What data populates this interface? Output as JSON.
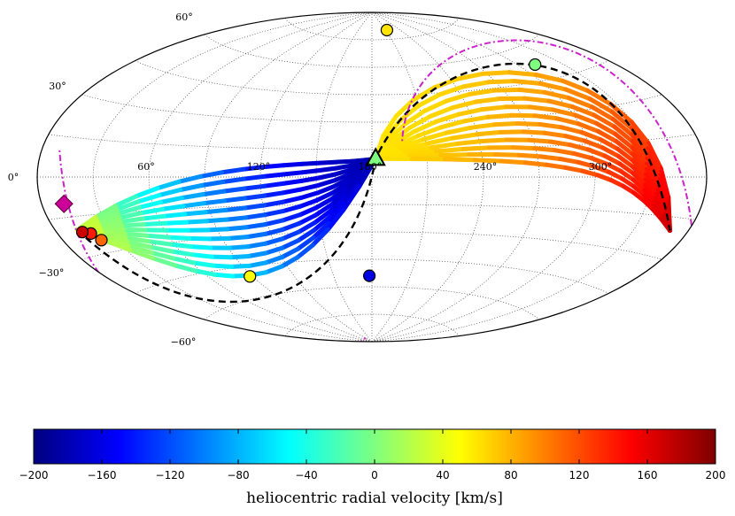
{
  "chart_data": {
    "type": "scatter",
    "projection": "Aitoff sky map",
    "title": "",
    "lon_ticks": [
      "60°",
      "120°",
      "180°",
      "240°",
      "300°"
    ],
    "lat_ticks": [
      "60°",
      "30°",
      "0°",
      "−30°",
      "−60°"
    ],
    "colorbar": {
      "label": "heliocentric radial velocity [km/s]",
      "range": [
        -200,
        200
      ],
      "tick_labels": [
        "−200",
        "−160",
        "−120",
        "−80",
        "−40",
        "0",
        "40",
        "80",
        "120",
        "160",
        "200"
      ],
      "colormap": [
        "#00007f",
        "#0000ff",
        "#007fff",
        "#00ffff",
        "#7fff7f",
        "#ffff00",
        "#ff7f00",
        "#ff0000",
        "#7f0000"
      ]
    },
    "source_marker": {
      "symbol": "triangle",
      "lon": 182,
      "lat": 10,
      "velocity": 0
    },
    "target_marker": {
      "symbol": "diamond",
      "lon": 12,
      "lat": -10,
      "color": "#cc0099"
    },
    "orbit_fan_east": {
      "n_tracks": 12,
      "endpoint": {
        "lon": 12,
        "lat": -20
      },
      "velocity_at_source": -180,
      "velocity_at_endpoint": 40
    },
    "orbit_fan_west": {
      "n_tracks": 12,
      "endpoint": {
        "lon": 350,
        "lat": -20
      },
      "velocity_at_source": 60,
      "velocity_at_endpoint": 170
    },
    "observed_points": [
      {
        "lon": 213,
        "lat": 80,
        "velocity": 60
      },
      {
        "lon": 312,
        "lat": 52,
        "velocity": 0
      },
      {
        "lon": 88,
        "lat": -50,
        "velocity": 50
      },
      {
        "lon": 178,
        "lat": -54,
        "velocity": -160
      },
      {
        "lon": 18,
        "lat": -22,
        "velocity": 140
      },
      {
        "lon": 21,
        "lat": -25,
        "velocity": 110
      },
      {
        "lon": 14,
        "lat": -21,
        "velocity": 170
      }
    ]
  }
}
